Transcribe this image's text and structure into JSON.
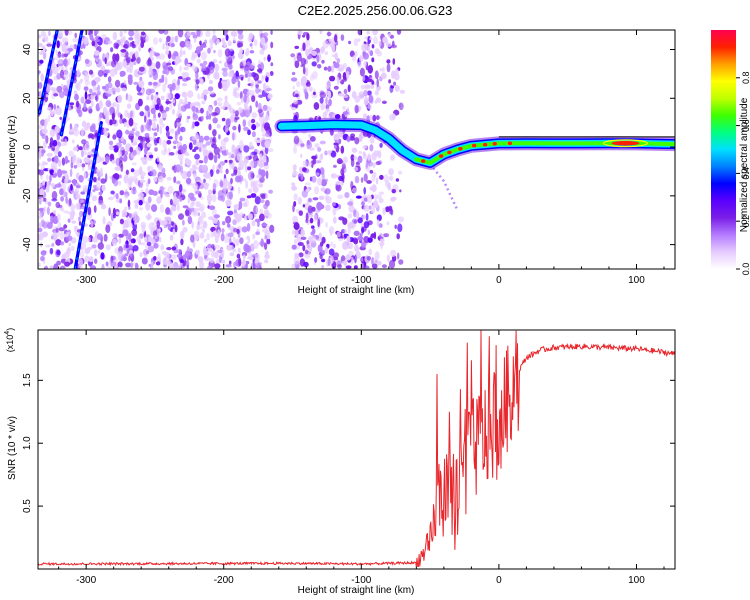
{
  "title": "C2E2.2025.256.00.06.G23",
  "colors": {
    "snr_line": "#e8252b",
    "frame": "#000000",
    "colormap": [
      "#ffffff",
      "#e6ccff",
      "#b47cff",
      "#7a1fe6",
      "#5a00ff",
      "#0000ff",
      "#0080ff",
      "#00e0ff",
      "#00ff80",
      "#40ff00",
      "#c0ff00",
      "#ffff00",
      "#ffa000",
      "#ff2000",
      "#ff0050"
    ]
  },
  "chart_data": [
    {
      "type": "heatmap",
      "name": "spectrogram",
      "xlabel": "Height of straight line (km)",
      "ylabel": "Frequency (Hz)",
      "xlim": [
        -335,
        128
      ],
      "ylim": [
        -50,
        48
      ],
      "xticks": [
        -300,
        -200,
        -100,
        0,
        100
      ],
      "yticks": [
        -40,
        -20,
        0,
        20,
        40
      ],
      "xtick_labels": [
        "-300",
        "-200",
        "-100",
        "0",
        "100"
      ],
      "ytick_labels": [
        "-40",
        "-20",
        "0",
        "20",
        "40"
      ],
      "features": {
        "main_signal": [
          {
            "x": -158,
            "y": 8.5
          },
          {
            "x": -140,
            "y": 8.8
          },
          {
            "x": -120,
            "y": 9.2
          },
          {
            "x": -100,
            "y": 9.0
          },
          {
            "x": -90,
            "y": 7.0
          },
          {
            "x": -80,
            "y": 3.5
          },
          {
            "x": -70,
            "y": -1.5
          },
          {
            "x": -60,
            "y": -5.0
          },
          {
            "x": -50,
            "y": -6.5
          },
          {
            "x": -40,
            "y": -3.0
          },
          {
            "x": -30,
            "y": -1.0
          },
          {
            "x": -20,
            "y": 0.5
          },
          {
            "x": -10,
            "y": 1.0
          },
          {
            "x": 0,
            "y": 1.5
          },
          {
            "x": 20,
            "y": 1.6
          },
          {
            "x": 40,
            "y": 1.5
          },
          {
            "x": 60,
            "y": 1.5
          },
          {
            "x": 80,
            "y": 1.6
          },
          {
            "x": 100,
            "y": 1.5
          },
          {
            "x": 128,
            "y": 1.2
          }
        ],
        "diagonal_streaks": [
          {
            "x1": -308,
            "y1": -50,
            "x2": -289,
            "y2": 10
          },
          {
            "x1": -318,
            "y1": 5,
            "x2": -303,
            "y2": 48
          },
          {
            "x1": -334,
            "y1": 14,
            "x2": -321,
            "y2": 48
          }
        ],
        "secondary_branch": [
          {
            "x": -50,
            "y": -7
          },
          {
            "x": -40,
            "y": -14
          },
          {
            "x": -30,
            "y": -26
          }
        ]
      }
    },
    {
      "type": "line",
      "name": "snr",
      "xlabel": "Height of straight line (km)",
      "ylabel": "SNR (10 * v/v)",
      "scale_label": "(x10",
      "scale_exponent": "4",
      "xlim": [
        -335,
        128
      ],
      "ylim": [
        0,
        1.9
      ],
      "xticks": [
        -300,
        -200,
        -100,
        0,
        100
      ],
      "yticks": [
        0.5,
        1.0,
        1.5
      ],
      "xtick_labels": [
        "-300",
        "-200",
        "-100",
        "0",
        "100"
      ],
      "ytick_labels": [
        "0.5",
        "1.0",
        "1.5"
      ],
      "series": [
        {
          "name": "SNR",
          "anchors": [
            {
              "x": -335,
              "y": 0.04
            },
            {
              "x": -150,
              "y": 0.045
            },
            {
              "x": -100,
              "y": 0.04
            },
            {
              "x": -60,
              "y": 0.05
            },
            {
              "x": -50,
              "y": 0.2
            },
            {
              "x": -45,
              "y": 0.55
            },
            {
              "x": -40,
              "y": 0.6
            },
            {
              "x": -35,
              "y": 0.55
            },
            {
              "x": -30,
              "y": 0.65
            },
            {
              "x": -25,
              "y": 0.85
            },
            {
              "x": -20,
              "y": 0.95
            },
            {
              "x": -15,
              "y": 1.05
            },
            {
              "x": -10,
              "y": 1.1
            },
            {
              "x": -5,
              "y": 1.15
            },
            {
              "x": 0,
              "y": 1.2
            },
            {
              "x": 5,
              "y": 1.35
            },
            {
              "x": 10,
              "y": 1.5
            },
            {
              "x": 20,
              "y": 1.68
            },
            {
              "x": 30,
              "y": 1.74
            },
            {
              "x": 40,
              "y": 1.76
            },
            {
              "x": 60,
              "y": 1.77
            },
            {
              "x": 80,
              "y": 1.76
            },
            {
              "x": 100,
              "y": 1.75
            },
            {
              "x": 115,
              "y": 1.73
            },
            {
              "x": 128,
              "y": 1.71
            }
          ],
          "spikes": [
            {
              "x": -45,
              "y": 1.55
            },
            {
              "x": -36,
              "y": 1.25
            },
            {
              "x": -28,
              "y": 1.43
            },
            {
              "x": -23,
              "y": 1.8
            },
            {
              "x": -20,
              "y": 1.66
            },
            {
              "x": -13,
              "y": 1.9
            },
            {
              "x": -7,
              "y": 1.85
            },
            {
              "x": -2,
              "y": 1.78
            }
          ]
        }
      ]
    },
    {
      "type": "colorbar",
      "name": "amplitude-colorbar",
      "label": "Normalized spectral amplitude",
      "range": [
        0,
        1
      ],
      "ticks": [
        0,
        0.2,
        0.4,
        0.6,
        0.8
      ],
      "tick_labels": [
        "0.0",
        "0.2",
        "0.4",
        "0.6",
        "0.8"
      ]
    }
  ]
}
